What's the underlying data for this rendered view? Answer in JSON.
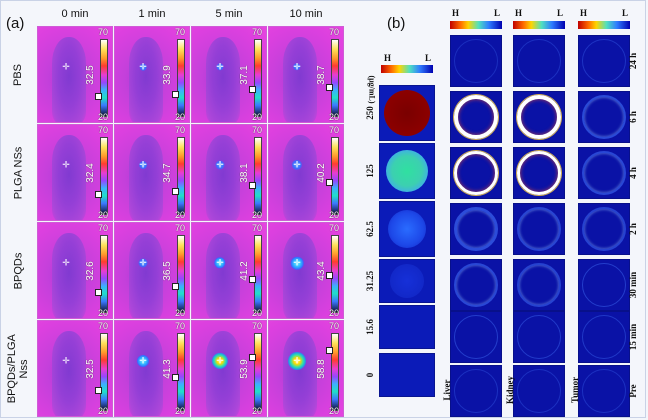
{
  "panel_a": {
    "label": "(a)",
    "times": [
      "0 min",
      "1 min",
      "5 min",
      "10 min"
    ],
    "colorbar": {
      "max": "70",
      "min": "20"
    },
    "rows": [
      {
        "label": "PBS",
        "temps": [
          "32.5",
          "33.9",
          "37.1",
          "38.7"
        ],
        "hot": [
          0,
          0.05,
          0.1,
          0.12
        ]
      },
      {
        "label": "PLGA NSs",
        "temps": [
          "32.4",
          "34.7",
          "38.1",
          "40.2"
        ],
        "hot": [
          0,
          0.15,
          0.25,
          0.35
        ]
      },
      {
        "label": "BPQDs",
        "temps": [
          "32.6",
          "36.5",
          "41.2",
          "43.4"
        ],
        "hot": [
          0,
          0.25,
          0.45,
          0.55
        ]
      },
      {
        "label": "BPQDs/PLGA Nss",
        "temps": [
          "32.5",
          "41.3",
          "53.9",
          "58.8"
        ],
        "hot": [
          0,
          0.5,
          0.85,
          1.0
        ]
      }
    ]
  },
  "panel_b": {
    "label": "(b)",
    "scale": {
      "high": "H",
      "low": "L"
    },
    "unit": "(μg/mL)",
    "concentrations": [
      "250",
      "125",
      "62.5",
      "31.25",
      "15.6",
      "0"
    ],
    "organs": [
      "Liver",
      "Kidney",
      "Tumor"
    ],
    "timepoints": [
      "24 h",
      "6 h",
      "4 h",
      "2 h",
      "30 min",
      "15 min",
      "Pre"
    ]
  },
  "colors": {
    "thermo_bg": "#db40df",
    "tile_bg": "#0a12a6",
    "page_bg": "#f4f6fb"
  }
}
